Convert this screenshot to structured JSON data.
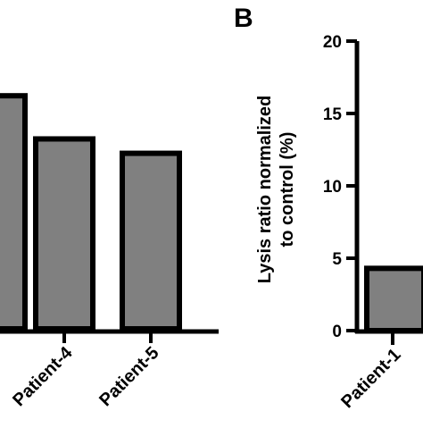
{
  "chart_data": [
    {
      "type": "bar",
      "panel_label": "",
      "title": "",
      "xlabel": "",
      "ylabel": "",
      "categories": [
        "",
        "Patient-4",
        "Patient-5"
      ],
      "values": [
        16.2,
        13.2,
        12.2
      ],
      "ylim": [
        0,
        20
      ],
      "bar_color": "#808080",
      "edge_color": "#000000",
      "grid": false
    },
    {
      "type": "bar",
      "panel_label": "B",
      "title": "",
      "xlabel": "",
      "ylabel": "Lysis ratio normalized to control (%)",
      "ylabel_lines": [
        "Lysis ratio normalized",
        "to control (%)"
      ],
      "categories": [
        "Patient-1"
      ],
      "values": [
        4.3
      ],
      "ylim": [
        0,
        20
      ],
      "yticks": [
        "0",
        "5",
        "10",
        "15",
        "20"
      ],
      "bar_color": "#808080",
      "edge_color": "#000000",
      "grid": false
    }
  ]
}
